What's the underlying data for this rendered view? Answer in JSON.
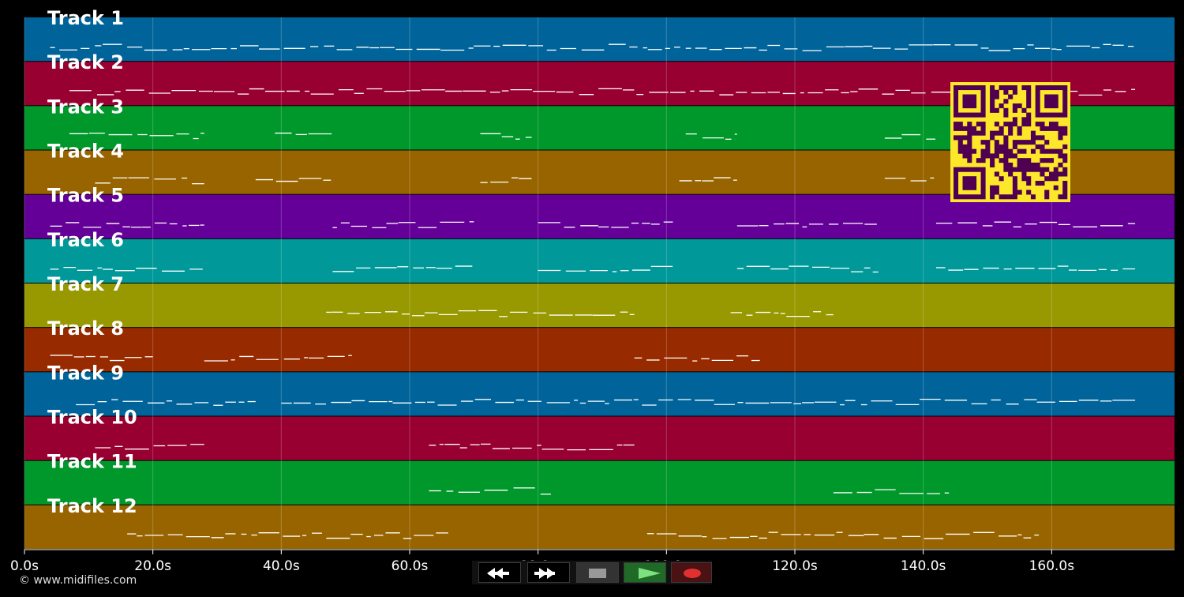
{
  "window": {
    "copyright": "© www.midifiles.com",
    "background": "#000000"
  },
  "timeline": {
    "unit": "s",
    "duration": 180,
    "tick_labels": [
      "0.0s",
      "20.0s",
      "40.0s",
      "60.0s",
      "80.0s",
      "100.0s",
      "120.0s",
      "140.0s",
      "160.0s"
    ],
    "tick_values": [
      0,
      20,
      40,
      60,
      80,
      100,
      120,
      140,
      160
    ]
  },
  "tracks": [
    {
      "label": "Track 1",
      "color": "#00649a"
    },
    {
      "label": "Track 2",
      "color": "#980032"
    },
    {
      "label": "Track 3",
      "color": "#00982a"
    },
    {
      "label": "Track 4",
      "color": "#986400"
    },
    {
      "label": "Track 5",
      "color": "#640098"
    },
    {
      "label": "Track 6",
      "color": "#009898"
    },
    {
      "label": "Track 7",
      "color": "#989800"
    },
    {
      "label": "Track 8",
      "color": "#982a00"
    },
    {
      "label": "Track 9",
      "color": "#00649a"
    },
    {
      "label": "Track 10",
      "color": "#980032"
    },
    {
      "label": "Track 11",
      "color": "#00982a"
    },
    {
      "label": "Track 12",
      "color": "#986400"
    }
  ],
  "note_segments": [
    [
      [
        4,
        173
      ]
    ],
    [
      [
        7,
        173
      ]
    ],
    [
      [
        7,
        28
      ],
      [
        39,
        48
      ],
      [
        71,
        79
      ],
      [
        103,
        111
      ],
      [
        134,
        142
      ]
    ],
    [
      [
        11,
        28
      ],
      [
        36,
        48
      ],
      [
        71,
        79
      ],
      [
        102,
        111
      ],
      [
        134,
        142
      ]
    ],
    [
      [
        4,
        28
      ],
      [
        48,
        70
      ],
      [
        80,
        101
      ],
      [
        111,
        133
      ],
      [
        142,
        173
      ]
    ],
    [
      [
        4,
        28
      ],
      [
        48,
        70
      ],
      [
        80,
        101
      ],
      [
        111,
        133
      ],
      [
        142,
        173
      ]
    ],
    [
      [
        47,
        95
      ],
      [
        110,
        126
      ]
    ],
    [
      [
        4,
        20
      ],
      [
        28,
        51
      ],
      [
        95,
        115
      ]
    ],
    [
      [
        8,
        36
      ],
      [
        40,
        173
      ]
    ],
    [
      [
        11,
        28
      ],
      [
        63,
        95
      ]
    ],
    [
      [
        63,
        82
      ],
      [
        126,
        144
      ]
    ],
    [
      [
        16,
        66
      ],
      [
        97,
        158
      ]
    ]
  ],
  "qr_code": {
    "name": "qr-code",
    "fg": "#500050",
    "bg": "#fde72a"
  },
  "transport": {
    "buttons": [
      {
        "name": "rewind-button",
        "icon": "rewind-icon"
      },
      {
        "name": "fast-forward-button",
        "icon": "fast-forward-icon"
      },
      {
        "name": "stop-button",
        "icon": "stop-icon"
      },
      {
        "name": "play-button",
        "icon": "play-icon"
      },
      {
        "name": "record-button",
        "icon": "record-icon"
      }
    ]
  }
}
